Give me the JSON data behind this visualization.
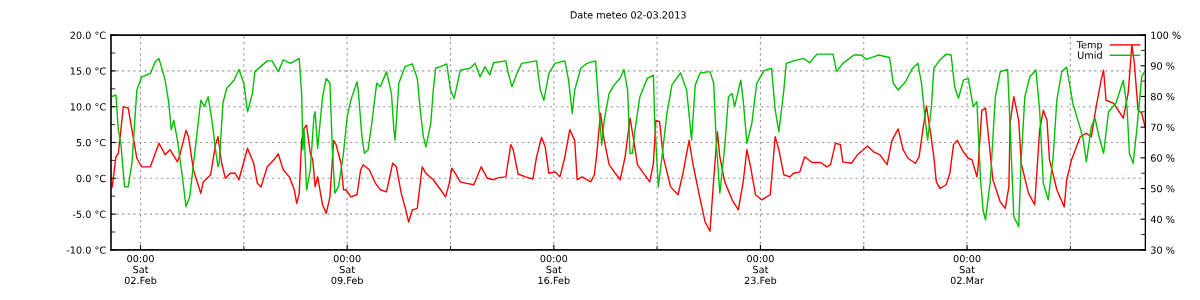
{
  "chart_data": {
    "type": "line",
    "title": "Date meteo 02-03.2013",
    "xlim": [
      "2013-02-01T00:00",
      "2013-03-08T01:00"
    ],
    "xticks": [
      {
        "value": "2013-02-02T00:00",
        "label": "00:00\nSat\n02.Feb"
      },
      {
        "value": "2013-02-05T12:00",
        "label": null
      },
      {
        "value": "2013-02-09T00:00",
        "label": "00:00\nSat\n09.Feb"
      },
      {
        "value": "2013-02-12T12:00",
        "label": null
      },
      {
        "value": "2013-02-16T00:00",
        "label": "00:00\nSat\n16.Feb"
      },
      {
        "value": "2013-02-19T12:00",
        "label": null
      },
      {
        "value": "2013-02-23T00:00",
        "label": "00:00\nSat\n23.Feb"
      },
      {
        "value": "2013-02-26T12:00",
        "label": null
      },
      {
        "value": "2013-03-02T00:00",
        "label": "00:00\nSat\n02.Mar"
      },
      {
        "value": "2013-03-05T12:00",
        "label": null
      }
    ],
    "ylim": [
      -10,
      20
    ],
    "yticks": [
      {
        "value": -10,
        "label": "-10.0 °C"
      },
      {
        "value": -7.5,
        "label": null
      },
      {
        "value": -5,
        "label": "-5.0 °C"
      },
      {
        "value": -2.5,
        "label": null
      },
      {
        "value": 0,
        "label": "0.0 °C"
      },
      {
        "value": 2.5,
        "label": null
      },
      {
        "value": 5,
        "label": "5.0 °C"
      },
      {
        "value": 7.5,
        "label": null
      },
      {
        "value": 10,
        "label": "10.0 °C"
      },
      {
        "value": 12.5,
        "label": null
      },
      {
        "value": 15,
        "label": "15.0 °C"
      },
      {
        "value": 17.5,
        "label": null
      },
      {
        "value": 20,
        "label": "20.0 °C"
      }
    ],
    "y2lim": [
      30,
      100
    ],
    "y2ticks": [
      {
        "value": 30,
        "label": "30 %"
      },
      {
        "value": 35,
        "label": null
      },
      {
        "value": 40,
        "label": "40 %"
      },
      {
        "value": 45,
        "label": null
      },
      {
        "value": 50,
        "label": "50 %"
      },
      {
        "value": 55,
        "label": null
      },
      {
        "value": 60,
        "label": "60 %"
      },
      {
        "value": 65,
        "label": null
      },
      {
        "value": 70,
        "label": "70 %"
      },
      {
        "value": 75,
        "label": null
      },
      {
        "value": 80,
        "label": "80 %"
      },
      {
        "value": 85,
        "label": null
      },
      {
        "value": 90,
        "label": "90 %"
      },
      {
        "value": 95,
        "label": null
      },
      {
        "value": 100,
        "label": "100 %"
      }
    ],
    "grid": true,
    "legend": "top right",
    "line_style": "solid",
    "marker": "none",
    "series": [
      {
        "name": "Temp",
        "color": "#ff0000",
        "x": [
          "2013-02-01T01:00",
          "2013-02-01T04:00",
          "2013-02-01T06:00",
          "2013-02-01T10:00",
          "2013-02-01T14:00",
          "2013-02-01T18:00",
          "2013-02-01T21:00",
          "2013-02-02T01:00",
          "2013-02-02T08:00",
          "2013-02-02T15:00",
          "2013-02-02T20:00",
          "2013-02-03T00:00",
          "2013-02-03T06:00",
          "2013-02-03T08:00",
          "2013-02-03T13:00",
          "2013-02-03T15:00",
          "2013-02-03T19:00",
          "2013-02-04T01:00",
          "2013-02-04T03:00",
          "2013-02-04T09:00",
          "2013-02-04T13:00",
          "2013-02-04T15:00",
          "2013-02-04T18:00",
          "2013-02-04T21:00",
          "2013-02-05T01:00",
          "2013-02-05T05:00",
          "2013-02-05T08:00",
          "2013-02-05T15:00",
          "2013-02-05T20:00",
          "2013-02-05T23:00",
          "2013-02-06T02:00",
          "2013-02-06T07:00",
          "2013-02-06T11:00",
          "2013-02-06T16:00",
          "2013-02-06T20:00",
          "2013-02-07T01:00",
          "2013-02-07T05:00",
          "2013-02-07T07:00",
          "2013-02-07T09:00",
          "2013-02-07T11:00",
          "2013-02-07T13:00",
          "2013-02-07T15:00",
          "2013-02-07T18:00",
          "2013-02-07T20:00",
          "2013-02-07T22:00",
          "2013-02-08T00:00",
          "2013-02-08T04:00",
          "2013-02-08T07:00",
          "2013-02-08T10:00",
          "2013-02-08T13:00",
          "2013-02-08T15:00",
          "2013-02-08T19:00",
          "2013-02-08T21:00",
          "2013-02-08T23:00",
          "2013-02-09T03:00",
          "2013-02-09T08:00",
          "2013-02-09T11:00",
          "2013-02-09T13:00",
          "2013-02-09T18:00",
          "2013-02-09T23:00",
          "2013-02-10T03:00",
          "2013-02-10T08:00",
          "2013-02-10T13:00",
          "2013-02-10T16:00",
          "2013-02-10T20:00",
          "2013-02-10T23:00",
          "2013-02-11T02:00",
          "2013-02-11T05:00",
          "2013-02-11T09:00",
          "2013-02-11T13:00",
          "2013-02-11T16:00",
          "2013-02-11T22:00",
          "2013-02-12T04:00",
          "2013-02-12T08:00",
          "2013-02-12T11:00",
          "2013-02-12T13:00",
          "2013-02-12T16:00",
          "2013-02-12T20:00",
          "2013-02-13T01:00",
          "2013-02-13T07:00",
          "2013-02-13T13:00",
          "2013-02-13T18:00",
          "2013-02-13T23:00",
          "2013-02-14T03:00",
          "2013-02-14T09:00",
          "2013-02-14T13:00",
          "2013-02-14T15:00",
          "2013-02-14T19:00",
          "2013-02-15T01:00",
          "2013-02-15T07:00",
          "2013-02-15T10:00",
          "2013-02-15T14:00",
          "2013-02-15T17:00",
          "2013-02-15T20:00",
          "2013-02-16T01:00",
          "2013-02-16T05:00",
          "2013-02-16T09:00",
          "2013-02-16T13:00",
          "2013-02-16T17:00",
          "2013-02-16T19:00",
          "2013-02-16T23:00",
          "2013-02-17T06:00",
          "2013-02-17T09:00",
          "2013-02-17T11:00",
          "2013-02-17T14:00",
          "2013-02-17T17:00",
          "2013-02-17T21:00",
          "2013-02-18T02:00",
          "2013-02-18T06:00",
          "2013-02-18T10:00",
          "2013-02-18T14:00",
          "2013-02-18T17:00",
          "2013-02-18T20:00",
          "2013-02-19T01:00",
          "2013-02-19T06:00",
          "2013-02-19T09:00",
          "2013-02-19T11:00",
          "2013-02-19T14:00",
          "2013-02-19T17:00",
          "2013-02-19T23:00",
          "2013-02-20T05:00",
          "2013-02-20T09:00",
          "2013-02-20T14:00",
          "2013-02-20T17:00",
          "2013-02-20T22:00",
          "2013-02-21T03:00",
          "2013-02-21T07:00",
          "2013-02-21T10:00",
          "2013-02-21T13:00",
          "2013-02-21T15:00",
          "2013-02-21T19:00",
          "2013-02-22T01:00",
          "2013-02-22T06:00",
          "2013-02-22T10:00",
          "2013-02-22T13:00",
          "2013-02-22T16:00",
          "2013-02-22T20:00",
          "2013-02-23T01:00",
          "2013-02-23T08:00",
          "2013-02-23T12:00",
          "2013-02-23T15:00",
          "2013-02-23T19:00",
          "2013-02-24T00:00",
          "2013-02-24T03:00",
          "2013-02-24T08:00",
          "2013-02-24T12:00",
          "2013-02-24T18:00",
          "2013-02-25T01:00",
          "2013-02-25T06:00",
          "2013-02-25T09:00",
          "2013-02-25T13:00",
          "2013-02-25T17:00",
          "2013-02-25T19:00",
          "2013-02-26T02:00",
          "2013-02-26T07:00",
          "2013-02-26T15:00",
          "2013-02-26T20:00",
          "2013-02-27T01:00",
          "2013-02-27T07:00",
          "2013-02-27T11:00",
          "2013-02-27T16:00",
          "2013-02-27T20:00",
          "2013-02-28T00:00",
          "2013-02-28T06:00",
          "2013-02-28T09:00",
          "2013-02-28T12:00",
          "2013-02-28T15:00",
          "2013-02-28T18:00",
          "2013-02-28T21:00",
          "2013-02-28T23:00",
          "2013-03-01T02:00",
          "2013-03-01T07:00",
          "2013-03-01T10:00",
          "2013-03-01T13:00",
          "2013-03-01T16:00",
          "2013-03-01T21:00",
          "2013-03-02T01:00",
          "2013-03-02T04:00",
          "2013-03-02T08:00",
          "2013-03-02T09:00",
          "2013-03-02T12:00",
          "2013-03-02T15:00",
          "2013-03-02T18:00",
          "2013-03-02T21:00",
          "2013-03-03T03:00",
          "2013-03-03T07:00",
          "2013-03-03T10:00",
          "2013-03-03T11:00",
          "2013-03-03T14:00",
          "2013-03-03T18:00",
          "2013-03-03T20:00",
          "2013-03-04T02:00",
          "2013-03-04T07:00",
          "2013-03-04T11:00",
          "2013-03-04T14:00",
          "2013-03-04T17:00",
          "2013-03-04T19:00",
          "2013-03-05T01:00",
          "2013-03-05T07:00",
          "2013-03-05T09:00",
          "2013-03-05T13:00",
          "2013-03-05T20:00",
          "2013-03-06T01:00",
          "2013-03-06T05:00",
          "2013-03-06T09:00",
          "2013-03-06T13:00",
          "2013-03-06T15:00",
          "2013-03-06T17:00",
          "2013-03-06T23:00",
          "2013-03-07T03:00",
          "2013-03-07T07:00",
          "2013-03-07T11:00",
          "2013-03-07T14:00",
          "2013-03-07T16:00",
          "2013-03-07T19:00",
          "2013-03-07T22:00",
          "2013-03-08T01:00"
        ],
        "values": [
          -1.2,
          3.0,
          3.5,
          10.0,
          9.8,
          5.8,
          2.8,
          1.6,
          1.6,
          4.9,
          3.3,
          4.0,
          2.3,
          3.3,
          6.7,
          5.8,
          1.2,
          -2.1,
          -0.5,
          0.5,
          4.7,
          5.8,
          2.1,
          0.0,
          0.7,
          0.7,
          -0.2,
          4.2,
          2.1,
          -0.7,
          -1.2,
          1.6,
          2.3,
          3.4,
          1.2,
          0.2,
          -1.6,
          -3.5,
          -2.1,
          5.3,
          7.0,
          7.4,
          3.5,
          2.6,
          -1.2,
          0.2,
          -3.7,
          -4.9,
          -2.6,
          5.3,
          4.7,
          2.1,
          -1.6,
          -1.6,
          -2.6,
          -2.3,
          1.2,
          1.9,
          1.2,
          -0.7,
          -1.6,
          -1.9,
          2.1,
          1.6,
          -2.1,
          -4.0,
          -6.1,
          -4.4,
          -4.2,
          1.6,
          0.7,
          -0.2,
          -1.6,
          -2.6,
          -0.7,
          1.4,
          0.7,
          -0.5,
          -0.7,
          -0.9,
          1.6,
          0.0,
          -0.2,
          0.1,
          0.2,
          4.7,
          4.0,
          0.6,
          0.2,
          -0.1,
          3.0,
          5.7,
          4.4,
          0.7,
          0.9,
          0.2,
          3.0,
          6.8,
          5.3,
          -0.2,
          0.2,
          -0.5,
          0.5,
          3.5,
          9.1,
          5.3,
          1.9,
          0.7,
          -0.2,
          3.0,
          8.4,
          5.3,
          1.9,
          0.7,
          -0.5,
          2.1,
          8.1,
          7.9,
          3.0,
          -1.2,
          -2.3,
          0.7,
          5.3,
          2.1,
          -2.1,
          -6.1,
          -7.4,
          -0.2,
          6.5,
          3.0,
          -0.5,
          -3.0,
          -4.4,
          -0.5,
          4.0,
          1.6,
          -2.3,
          -3.0,
          -2.3,
          5.8,
          4.0,
          0.5,
          0.2,
          0.7,
          0.9,
          3.0,
          2.2,
          2.2,
          1.6,
          1.9,
          4.9,
          4.7,
          2.3,
          2.1,
          3.3,
          4.5,
          3.7,
          3.3,
          1.9,
          5.3,
          6.9,
          4.0,
          2.8,
          2.1,
          3.0,
          6.7,
          10.1,
          6.7,
          3.0,
          -0.5,
          -1.4,
          -0.9,
          0.7,
          4.7,
          5.3,
          3.7,
          2.8,
          2.6,
          0.2,
          1.6,
          9.5,
          9.8,
          4.9,
          -0.2,
          -3.3,
          -4.2,
          -1.2,
          7.7,
          11.4,
          8.1,
          2.1,
          -2.1,
          -3.7,
          6.7,
          9.5,
          8.1,
          2.6,
          -1.6,
          -4.0,
          -0.2,
          2.6,
          5.8,
          6.3,
          5.8,
          10.0,
          13.7,
          15.1,
          10.9,
          10.5,
          9.5,
          8.4,
          11.9,
          18.6,
          16.1,
          9.5,
          9.1,
          7.0
        ]
      },
      {
        "name": "Umid",
        "color": "#00c000",
        "axis": "y2",
        "x": [
          "2013-02-01T01:00",
          "2013-02-01T04:00",
          "2013-02-01T06:00",
          "2013-02-01T08:00",
          "2013-02-01T11:00",
          "2013-02-01T14:00",
          "2013-02-01T17:00",
          "2013-02-01T21:00",
          "2013-02-02T01:00",
          "2013-02-02T08:00",
          "2013-02-02T12:00",
          "2013-02-02T15:00",
          "2013-02-02T20:00",
          "2013-02-02T23:00",
          "2013-02-03T01:00",
          "2013-02-03T03:00",
          "2013-02-03T06:00",
          "2013-02-03T10:00",
          "2013-02-03T13:00",
          "2013-02-03T16:00",
          "2013-02-03T21:00",
          "2013-02-04T01:00",
          "2013-02-04T04:00",
          "2013-02-04T07:00",
          "2013-02-04T10:00",
          "2013-02-04T13:00",
          "2013-02-04T15:00",
          "2013-02-04T16:00",
          "2013-02-04T19:00",
          "2013-02-04T22:00",
          "2013-02-05T04:00",
          "2013-02-05T08:00",
          "2013-02-05T12:00",
          "2013-02-05T15:00",
          "2013-02-05T19:00",
          "2013-02-05T21:00",
          "2013-02-06T07:00",
          "2013-02-06T11:00",
          "2013-02-06T16:00",
          "2013-02-06T20:00",
          "2013-02-07T02:00",
          "2013-02-07T09:00",
          "2013-02-07T11:00",
          "2013-02-07T12:00",
          "2013-02-07T13:00",
          "2013-02-07T15:00",
          "2013-02-07T18:00",
          "2013-02-07T21:00",
          "2013-02-07T22:00",
          "2013-02-08T00:00",
          "2013-02-08T04:00",
          "2013-02-08T07:00",
          "2013-02-08T10:00",
          "2013-02-08T12:00",
          "2013-02-08T14:00",
          "2013-02-08T17:00",
          "2013-02-08T21:00",
          "2013-02-09T00:00",
          "2013-02-09T03:00",
          "2013-02-09T08:00",
          "2013-02-09T09:00",
          "2013-02-09T12:00",
          "2013-02-09T14:00",
          "2013-02-09T17:00",
          "2013-02-09T20:00",
          "2013-02-10T00:00",
          "2013-02-10T03:00",
          "2013-02-10T08:00",
          "2013-02-10T12:00",
          "2013-02-10T14:00",
          "2013-02-10T15:00",
          "2013-02-10T18:00",
          "2013-02-10T23:00",
          "2013-02-11T05:00",
          "2013-02-11T09:00",
          "2013-02-11T12:00",
          "2013-02-11T14:00",
          "2013-02-11T16:00",
          "2013-02-11T20:00",
          "2013-02-11T22:00",
          "2013-02-12T00:00",
          "2013-02-12T04:00",
          "2013-02-12T09:00",
          "2013-02-12T12:00",
          "2013-02-12T15:00",
          "2013-02-12T20:00",
          "2013-02-13T04:00",
          "2013-02-13T08:00",
          "2013-02-13T12:00",
          "2013-02-13T16:00",
          "2013-02-13T20:00",
          "2013-02-13T23:00",
          "2013-02-14T09:00",
          "2013-02-14T11:00",
          "2013-02-14T14:00",
          "2013-02-14T18:00",
          "2013-02-14T22:00",
          "2013-02-15T10:00",
          "2013-02-15T13:00",
          "2013-02-15T16:00",
          "2013-02-15T20:00",
          "2013-02-16T01:00",
          "2013-02-16T09:00",
          "2013-02-16T12:00",
          "2013-02-16T15:00",
          "2013-02-16T17:00",
          "2013-02-16T22:00",
          "2013-02-17T03:00",
          "2013-02-17T10:00",
          "2013-02-17T12:00",
          "2013-02-17T15:00",
          "2013-02-17T17:00",
          "2013-02-17T21:00",
          "2013-02-18T01:00",
          "2013-02-18T06:00",
          "2013-02-18T09:00",
          "2013-02-18T12:00",
          "2013-02-18T14:00",
          "2013-02-18T16:00",
          "2013-02-18T18:00",
          "2013-02-18T22:00",
          "2013-02-19T04:00",
          "2013-02-19T09:00",
          "2013-02-19T10:00",
          "2013-02-19T13:00",
          "2013-02-19T16:00",
          "2013-02-19T20:00",
          "2013-02-20T00:00",
          "2013-02-20T07:00",
          "2013-02-20T12:00",
          "2013-02-20T15:00",
          "2013-02-20T16:00",
          "2013-02-20T19:00",
          "2013-02-20T23:00",
          "2013-02-21T07:00",
          "2013-02-21T10:00",
          "2013-02-21T12:00",
          "2013-02-21T15:00",
          "2013-02-21T19:00",
          "2013-02-21T22:00",
          "2013-02-22T01:00",
          "2013-02-22T03:00",
          "2013-02-22T08:00",
          "2013-02-22T10:00",
          "2013-02-22T13:00",
          "2013-02-22T17:00",
          "2013-02-22T21:00",
          "2013-02-23T03:00",
          "2013-02-23T09:00",
          "2013-02-23T12:00",
          "2013-02-23T15:00",
          "2013-02-23T19:00",
          "2013-02-23T21:00",
          "2013-02-24T03:00",
          "2013-02-24T11:00",
          "2013-02-24T16:00",
          "2013-02-24T22:00",
          "2013-02-25T11:00",
          "2013-02-25T14:00",
          "2013-02-25T19:00",
          "2013-02-26T04:00",
          "2013-02-26T10:00",
          "2013-02-26T14:00",
          "2013-02-27T00:00",
          "2013-02-27T09:00",
          "2013-02-27T12:00",
          "2013-02-27T16:00",
          "2013-02-27T22:00",
          "2013-02-28T03:00",
          "2013-02-28T08:00",
          "2013-02-28T11:00",
          "2013-02-28T14:00",
          "2013-02-28T16:00",
          "2013-02-28T19:00",
          "2013-02-28T21:00",
          "2013-03-01T02:00",
          "2013-03-01T07:00",
          "2013-03-01T11:00",
          "2013-03-01T14:00",
          "2013-03-01T17:00",
          "2013-03-01T21:00",
          "2013-03-02T01:00",
          "2013-03-02T05:00",
          "2013-03-02T08:00",
          "2013-03-02T11:00",
          "2013-03-02T13:00",
          "2013-03-02T15:00",
          "2013-03-02T19:00",
          "2013-03-02T23:00",
          "2013-03-03T03:00",
          "2013-03-03T09:00",
          "2013-03-03T11:00",
          "2013-03-03T14:00",
          "2013-03-03T18:00",
          "2013-03-03T20:00",
          "2013-03-03T23:00",
          "2013-03-04T03:00",
          "2013-03-04T08:00",
          "2013-03-04T11:00",
          "2013-03-04T14:00",
          "2013-03-04T18:00",
          "2013-03-04T22:00",
          "2013-03-05T01:00",
          "2013-03-05T05:00",
          "2013-03-05T09:00",
          "2013-03-05T14:00",
          "2013-03-05T22:00",
          "2013-03-06T01:00",
          "2013-03-06T05:00",
          "2013-03-06T08:00",
          "2013-03-06T12:00",
          "2013-03-06T15:00",
          "2013-03-06T19:00",
          "2013-03-07T01:00",
          "2013-03-07T07:00",
          "2013-03-07T10:00",
          "2013-03-07T12:00",
          "2013-03-07T15:00",
          "2013-03-07T18:00",
          "2013-03-07T22:00",
          "2013-03-08T01:00"
        ],
        "values": [
          80,
          80.5,
          69,
          64.7,
          50.6,
          50.6,
          58.2,
          82,
          86.4,
          87.5,
          91.3,
          92.4,
          85.3,
          77.8,
          69.1,
          72.3,
          65.8,
          53.9,
          44.1,
          47.3,
          64.7,
          78.8,
          76.7,
          79.9,
          72.3,
          62.6,
          57.1,
          58.2,
          77.8,
          82.6,
          85.3,
          88.8,
          84.3,
          75.0,
          81.0,
          88.1,
          91.6,
          91.6,
          88.1,
          91.9,
          90.8,
          92.4,
          81.0,
          62.6,
          69.1,
          49.5,
          56.0,
          73.4,
          75.0,
          63.1,
          79.9,
          85.9,
          84.3,
          62.6,
          48.5,
          50.6,
          61.5,
          73.4,
          78.8,
          84.8,
          82.1,
          66.9,
          61.5,
          62.6,
          71.2,
          84.3,
          83.2,
          88.1,
          81.0,
          69.1,
          65.8,
          84.3,
          89.7,
          90.6,
          85.9,
          73.4,
          66.9,
          63.6,
          71.2,
          82.1,
          89.2,
          89.7,
          90.6,
          82.1,
          79.4,
          88.6,
          89.2,
          90.8,
          86.4,
          89.7,
          87.0,
          91.0,
          91.6,
          87.5,
          83.2,
          87.5,
          90.8,
          91.6,
          82.1,
          78.8,
          87.5,
          90.8,
          91.6,
          85.3,
          74.5,
          82.1,
          89.2,
          90.8,
          91.6,
          79.9,
          64.2,
          72.3,
          81.0,
          83.7,
          86,
          88.8,
          82.1,
          61.5,
          61.5,
          69.1,
          79.9,
          85.9,
          87.0,
          72.3,
          50.6,
          60.4,
          74.5,
          83.7,
          87.7,
          82.1,
          70.1,
          65.8,
          83.7,
          87.7,
          88.1,
          84.3,
          65.8,
          48.5,
          63.6,
          79.9,
          81.0,
          76.7,
          85.3,
          78.8,
          64.7,
          71.2,
          84.3,
          88.4,
          89.2,
          75.6,
          68.5,
          82,
          90.8,
          91.6,
          92.4,
          91.0,
          93.8,
          93.8,
          88.1,
          90.8,
          93.5,
          93.5,
          92.1,
          93.5,
          92.7,
          84.3,
          82.1,
          84.8,
          88.8,
          90.8,
          84.3,
          72.3,
          65.8,
          76.7,
          89.2,
          91.9,
          93.8,
          93.5,
          83,
          79.4,
          85.3,
          85.9,
          76.7,
          78.3,
          52.8,
          43.0,
          39.8,
          52.8,
          79.9,
          88.1,
          88.8,
          70.1,
          40.8,
          37.6,
          59.3,
          79.9,
          86.4,
          88.6,
          75.6,
          51.7,
          46.3,
          60.4,
          78.8,
          88.1,
          89.5,
          77.8,
          66.9,
          58.7,
          70.1,
          72.9,
          65.8,
          61.5,
          75.0,
          77.8,
          85.3,
          76.7,
          61.5,
          58.2,
          69.1,
          86.4,
          88.6
        ]
      }
    ]
  }
}
